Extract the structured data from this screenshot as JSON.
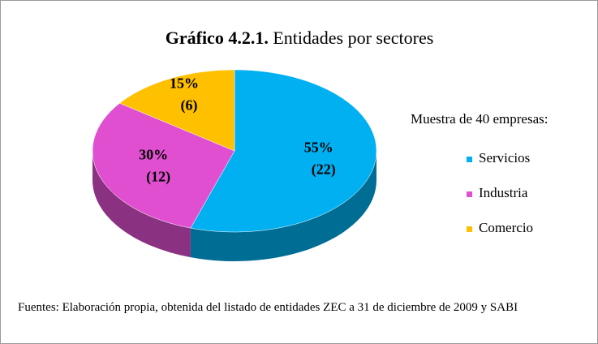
{
  "chart_data": {
    "type": "pie",
    "title": "Gráfico 4.2.1.",
    "subtitle": "Entidades por sectores",
    "legend_title": "Muestra de 40 empresas:",
    "categories": [
      "Servicios",
      "Industria",
      "Comercio"
    ],
    "values": [
      55,
      30,
      15
    ],
    "value_labels": [
      "55%",
      "30%",
      "15%"
    ],
    "counts": [
      22,
      12,
      6
    ],
    "count_labels": [
      "(22)",
      "(12)",
      "(6)"
    ],
    "colors": [
      "#00b0f0",
      "#e04fd0",
      "#ffc000"
    ],
    "legend": "right",
    "footnote": "Fuentes: Elaboración propia,  obtenida del listado de entidades ZEC a 31 de diciembre de 2009 y SABI"
  }
}
